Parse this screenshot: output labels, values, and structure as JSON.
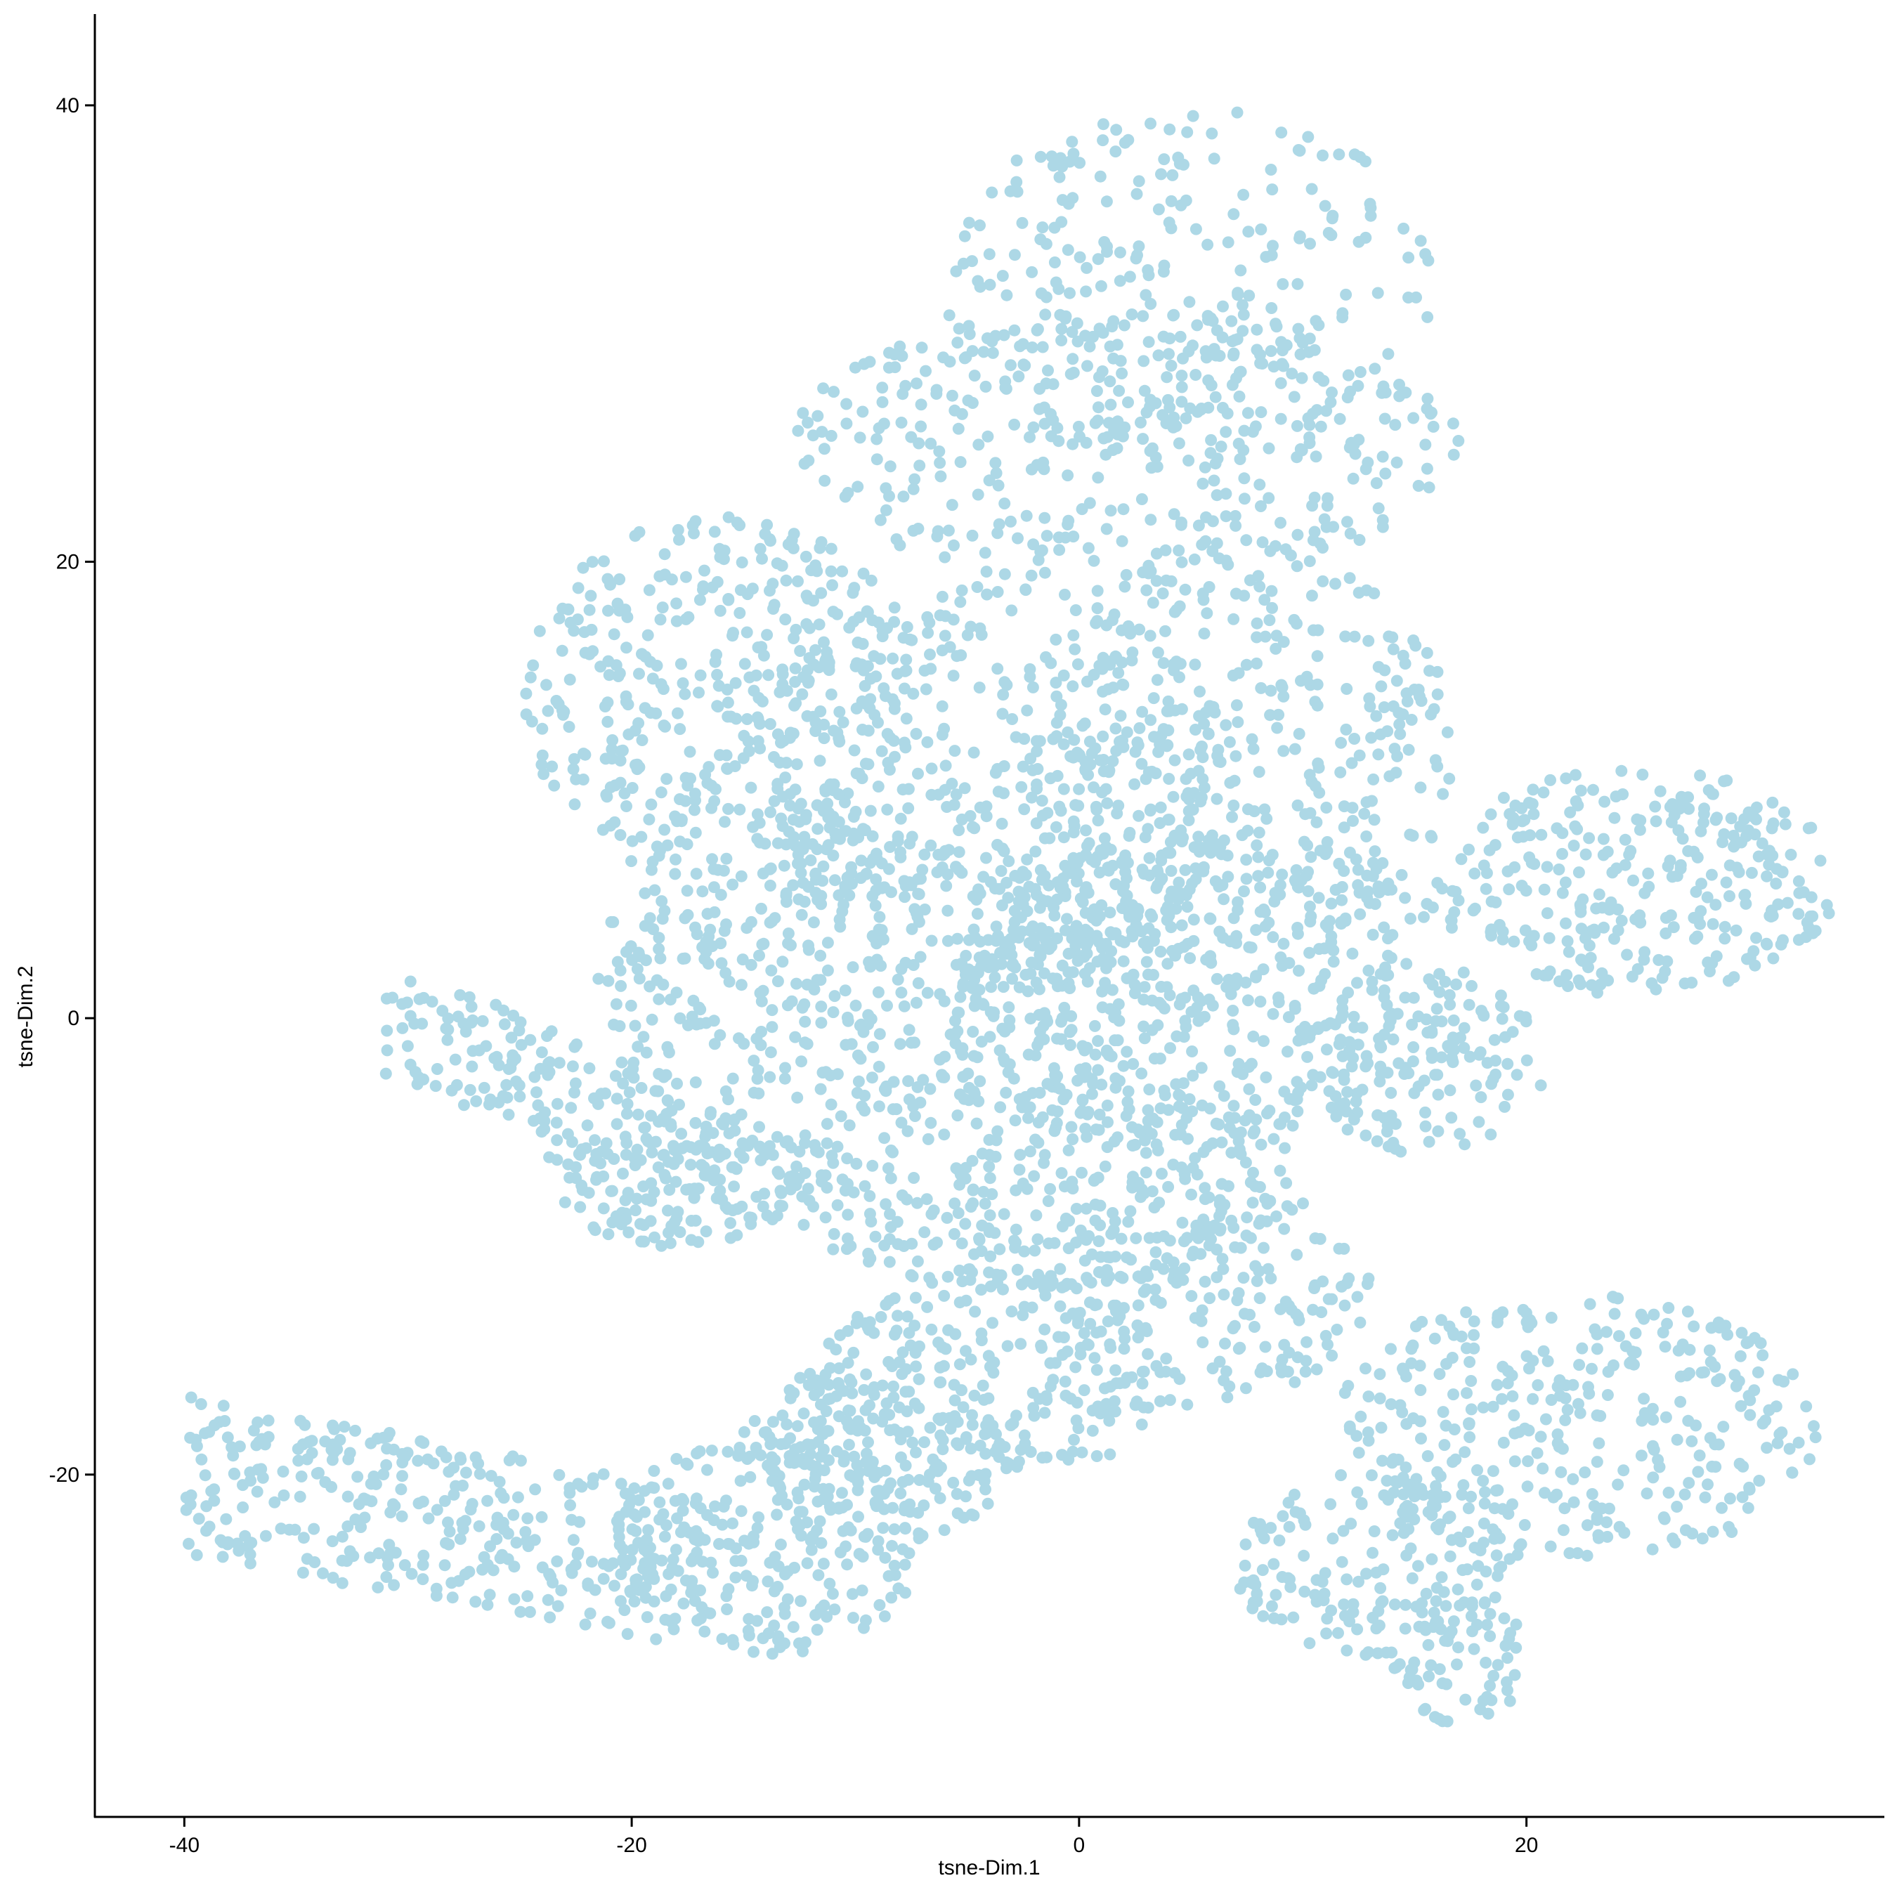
{
  "chart_data": {
    "type": "scatter",
    "title": "",
    "xlabel": "tsne-Dim.1",
    "ylabel": "tsne-Dim.2",
    "xlim": [
      -44,
      36
    ],
    "ylim": [
      -35,
      44
    ],
    "x_ticks": [
      -40,
      -20,
      0,
      20
    ],
    "y_ticks": [
      -20,
      0,
      20,
      40
    ],
    "x_tick_labels": [
      "-40",
      "-20",
      "0",
      "20"
    ],
    "y_tick_labels": [
      "-20",
      "0",
      "20",
      "40"
    ],
    "grid": false,
    "legend": "none",
    "point_color": "#add8e6",
    "approx_point_count": 4800,
    "regions": [
      {
        "shape": "ellipse",
        "cx": 5,
        "cy": 32,
        "rx": 11,
        "ry": 8,
        "weight": 260
      },
      {
        "shape": "ellipse",
        "cx": 2,
        "cy": 25,
        "rx": 15,
        "ry": 6,
        "weight": 340
      },
      {
        "shape": "ellipse",
        "cx": -16,
        "cy": 14,
        "rx": 9,
        "ry": 8,
        "weight": 380
      },
      {
        "shape": "ellipse",
        "cx": -4,
        "cy": 10,
        "rx": 11,
        "ry": 9,
        "weight": 420
      },
      {
        "shape": "ellipse",
        "cx": 7,
        "cy": 12,
        "rx": 10,
        "ry": 9,
        "weight": 380
      },
      {
        "shape": "ellipse",
        "cx": -8,
        "cy": 2,
        "rx": 14,
        "ry": 6,
        "weight": 420
      },
      {
        "shape": "ellipse",
        "cx": 6,
        "cy": 1,
        "rx": 12,
        "ry": 7,
        "weight": 400
      },
      {
        "shape": "ellipse",
        "cx": -2,
        "cy": -7,
        "rx": 12,
        "ry": 5,
        "weight": 360
      },
      {
        "shape": "ellipse",
        "cx": 5,
        "cy": -12,
        "rx": 8,
        "ry": 5,
        "weight": 200
      },
      {
        "shape": "ellipse",
        "cx": -4,
        "cy": -16,
        "rx": 8,
        "ry": 5,
        "weight": 200
      },
      {
        "shape": "ellipse",
        "cx": 25,
        "cy": 6,
        "rx": 9,
        "ry": 5,
        "weight": 300
      },
      {
        "shape": "ellipse",
        "cx": 15,
        "cy": -2,
        "rx": 6,
        "ry": 4,
        "weight": 120
      },
      {
        "shape": "ellipse",
        "cx": 22,
        "cy": -18,
        "rx": 11,
        "ry": 6,
        "weight": 340
      },
      {
        "shape": "ellipse",
        "cx": 13,
        "cy": -24,
        "rx": 6,
        "ry": 4,
        "weight": 150
      },
      {
        "shape": "ellipse",
        "cx": 17,
        "cy": -28,
        "rx": 3,
        "ry": 3,
        "weight": 70
      },
      {
        "shape": "ellipse",
        "cx": -14,
        "cy": -23,
        "rx": 7,
        "ry": 5,
        "weight": 260
      },
      {
        "shape": "ellipse",
        "cx": -9,
        "cy": -19,
        "rx": 6,
        "ry": 4,
        "weight": 160
      },
      {
        "shape": "ellipse",
        "cx": -18,
        "cy": -7,
        "rx": 6,
        "ry": 3,
        "weight": 150
      },
      {
        "shape": "band",
        "x1": -40,
        "y1": -20,
        "x2": -18,
        "y2": -24,
        "width": 3.5,
        "weight": 320
      },
      {
        "shape": "band",
        "x1": -31,
        "y1": 0,
        "x2": -15,
        "y2": -6,
        "width": 2.5,
        "weight": 180
      }
    ]
  }
}
